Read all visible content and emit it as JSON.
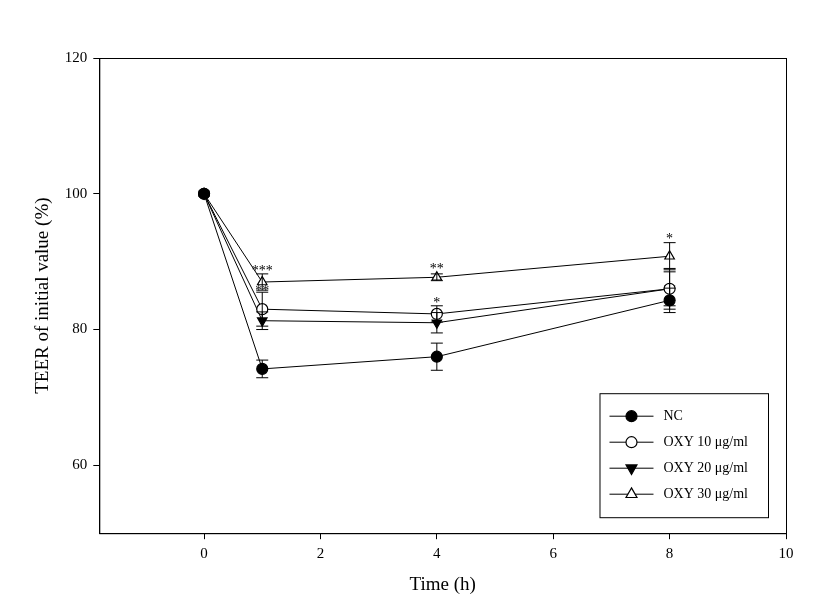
{
  "chart_data": {
    "type": "line",
    "x_label": "Time (h)",
    "y_label": "TEER of initial value (%)",
    "x": [
      0,
      1,
      4,
      8
    ],
    "xlim": [
      -1.8,
      10
    ],
    "xticks": [
      0,
      2,
      4,
      6,
      8,
      10
    ],
    "ylim": [
      50,
      120
    ],
    "yticks": [
      60,
      80,
      100,
      120
    ],
    "grid": false,
    "legend": "lower right",
    "series": [
      {
        "name": "NC",
        "color": "#000000",
        "marker": "circle",
        "values": [
          100,
          74.2,
          76,
          84.3
        ],
        "errors": [
          0,
          1.3,
          2,
          1.8
        ]
      },
      {
        "name": "OXY 10 μg/ml",
        "color": "#000000",
        "marker": "circle_open",
        "values": [
          100,
          83,
          82.3,
          86
        ],
        "errors": [
          0,
          2.5,
          1.2,
          2.5
        ]
      },
      {
        "name": "OXY 20 μg/ml",
        "color": "#000000",
        "marker": "triangle_down",
        "values": [
          100,
          81.3,
          81,
          86
        ],
        "errors": [
          0,
          1.3,
          1.5,
          3
        ]
      },
      {
        "name": "OXY 30 μg/ml",
        "color": "#000000",
        "marker": "triangle_up_open",
        "values": [
          100,
          87,
          87.7,
          90.8
        ],
        "errors": [
          0,
          1.2,
          0.5,
          2
        ]
      }
    ],
    "annotations": [
      {
        "x": 1,
        "y": 88.6,
        "text": "***"
      },
      {
        "x": 1,
        "y": 85.6,
        "text": "**"
      },
      {
        "x": 4,
        "y": 88.8,
        "text": "**"
      },
      {
        "x": 4,
        "y": 83.9,
        "text": "*"
      },
      {
        "x": 8,
        "y": 93.3,
        "text": "*"
      }
    ]
  }
}
